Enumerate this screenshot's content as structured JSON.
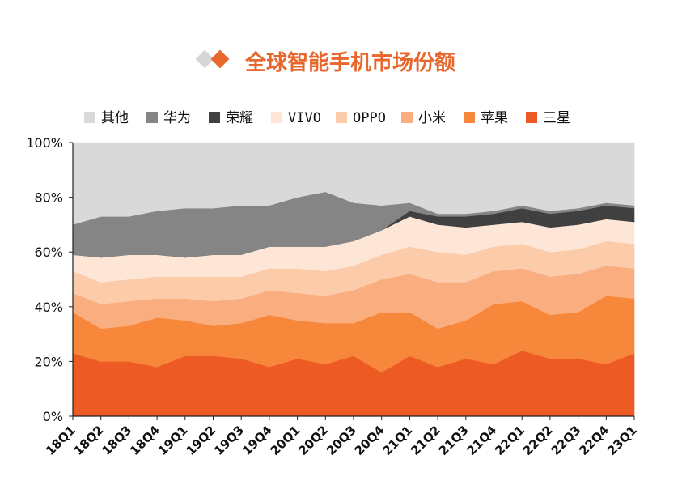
{
  "chart_data": {
    "type": "area",
    "stacked": true,
    "title": "全球智能手机市场份额",
    "title_color": "#E8672C",
    "categories": [
      "18Q1",
      "18Q2",
      "18Q3",
      "18Q4",
      "19Q1",
      "19Q2",
      "19Q3",
      "19Q4",
      "20Q1",
      "20Q2",
      "20Q3",
      "20Q4",
      "21Q1",
      "21Q2",
      "21Q3",
      "21Q4",
      "22Q1",
      "22Q2",
      "22Q3",
      "22Q4",
      "23Q1"
    ],
    "y_ticks": [
      "0%",
      "20%",
      "40%",
      "60%",
      "80%",
      "100%"
    ],
    "ylim": [
      0,
      100
    ],
    "legend_position": "top",
    "grid": false,
    "series": [
      {
        "name": "三星",
        "color": "#EE5A24",
        "values": [
          23,
          20,
          20,
          18,
          22,
          22,
          21,
          18,
          21,
          19,
          22,
          16,
          22,
          18,
          21,
          19,
          24,
          21,
          21,
          19,
          23
        ]
      },
      {
        "name": "苹果",
        "color": "#F7873A",
        "values": [
          15,
          12,
          13,
          18,
          13,
          11,
          13,
          19,
          14,
          15,
          12,
          22,
          16,
          14,
          14,
          22,
          18,
          16,
          17,
          25,
          20
        ]
      },
      {
        "name": "小米",
        "color": "#FAAD7E",
        "values": [
          7,
          9,
          9,
          7,
          8,
          9,
          9,
          9,
          10,
          10,
          12,
          12,
          14,
          17,
          14,
          12,
          12,
          14,
          14,
          11,
          11
        ]
      },
      {
        "name": "OPPO",
        "color": "#FCCBAA",
        "values": [
          8,
          8,
          8,
          8,
          8,
          9,
          8,
          8,
          9,
          9,
          9,
          9,
          10,
          11,
          10,
          9,
          9,
          9,
          9,
          9,
          9
        ]
      },
      {
        "name": "VIVO",
        "color": "#FEE6D6",
        "values": [
          6,
          9,
          9,
          8,
          7,
          8,
          8,
          8,
          8,
          9,
          9,
          9,
          11,
          10,
          10,
          8,
          8,
          9,
          9,
          8,
          8
        ]
      },
      {
        "name": "荣耀",
        "color": "#404040",
        "values": [
          0,
          0,
          0,
          0,
          0,
          0,
          0,
          0,
          0,
          0,
          0,
          0,
          2,
          3,
          4,
          4,
          5,
          5,
          5,
          5,
          5
        ]
      },
      {
        "name": "华为",
        "color": "#858585",
        "values": [
          11,
          15,
          14,
          16,
          18,
          17,
          18,
          15,
          18,
          20,
          14,
          9,
          3,
          1,
          1,
          1,
          1,
          1,
          1,
          1,
          1
        ]
      },
      {
        "name": "其他",
        "color": "#D9D9D9",
        "values": [
          30,
          27,
          27,
          25,
          24,
          24,
          23,
          23,
          20,
          18,
          22,
          23,
          22,
          26,
          26,
          25,
          23,
          25,
          24,
          22,
          23
        ]
      }
    ]
  }
}
